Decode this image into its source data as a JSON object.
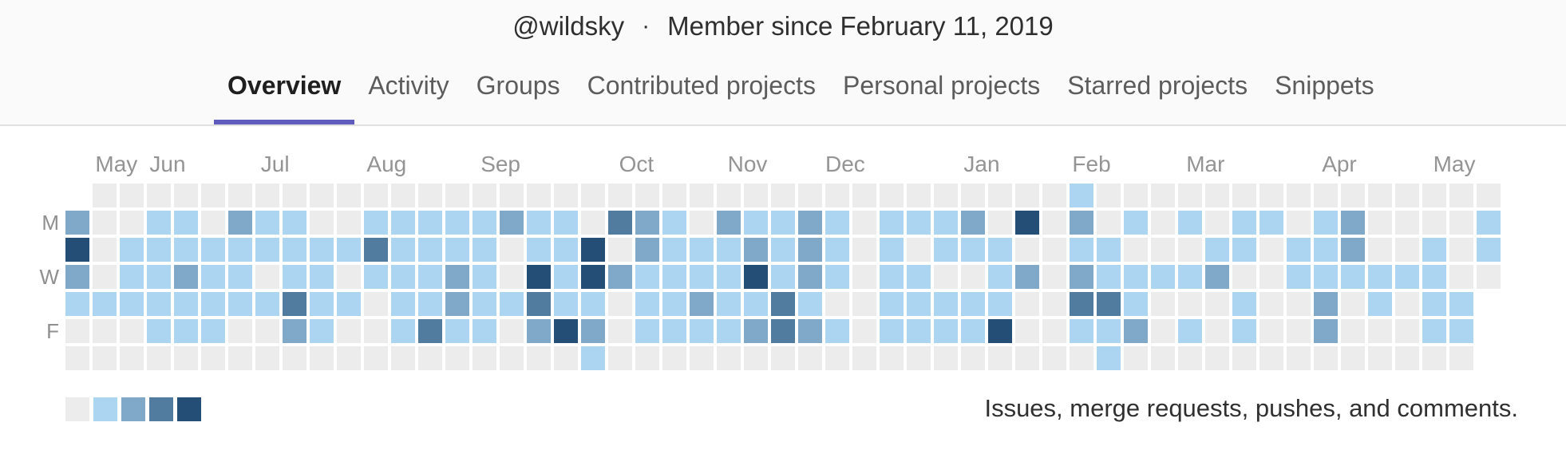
{
  "header": {
    "username": "@wildsky",
    "separator": "·",
    "member_since": "Member since February 11, 2019"
  },
  "tabs": [
    {
      "label": "Overview",
      "active": true
    },
    {
      "label": "Activity",
      "active": false
    },
    {
      "label": "Groups",
      "active": false
    },
    {
      "label": "Contributed projects",
      "active": false
    },
    {
      "label": "Personal projects",
      "active": false
    },
    {
      "label": "Starred projects",
      "active": false
    },
    {
      "label": "Snippets",
      "active": false
    }
  ],
  "theme": {
    "accent": "#5f5cbe",
    "header_bg": "#fafafa",
    "border": "#e0e0e0"
  },
  "calendar": {
    "months": [
      {
        "label": "May",
        "week": 1.1
      },
      {
        "label": "Jun",
        "week": 3.1
      },
      {
        "label": "Jul",
        "week": 7.2
      },
      {
        "label": "Aug",
        "week": 11.1
      },
      {
        "label": "Sep",
        "week": 15.3
      },
      {
        "label": "Oct",
        "week": 20.4
      },
      {
        "label": "Nov",
        "week": 24.4
      },
      {
        "label": "Dec",
        "week": 28.0
      },
      {
        "label": "Jan",
        "week": 33.1
      },
      {
        "label": "Feb",
        "week": 37.1
      },
      {
        "label": "Mar",
        "week": 41.3
      },
      {
        "label": "Apr",
        "week": 46.3
      },
      {
        "label": "May",
        "week": 50.4
      }
    ],
    "day_labels": [
      {
        "label": "M",
        "row": 1
      },
      {
        "label": "W",
        "row": 3
      },
      {
        "label": "F",
        "row": 5
      }
    ],
    "days_order": [
      "Sun",
      "Mon",
      "Tue",
      "Wed",
      "Thu",
      "Fri",
      "Sat"
    ],
    "level_colors": [
      "#ececec",
      "#acd5f2",
      "#7fa8c9",
      "#527ba0",
      "#254e77"
    ],
    "grid": [
      [
        null,
        0,
        0,
        0,
        0,
        0,
        0,
        0,
        0,
        0,
        0,
        0,
        0,
        0,
        0,
        0,
        0,
        0,
        0,
        0,
        0,
        0,
        0,
        0,
        0,
        0,
        0,
        0,
        0,
        0,
        0,
        0,
        0,
        0,
        0,
        0,
        0,
        1,
        0,
        0,
        0,
        0,
        0,
        0,
        0,
        0,
        0,
        0,
        0,
        0,
        0,
        0,
        0
      ],
      [
        2,
        0,
        0,
        1,
        1,
        0,
        2,
        1,
        1,
        0,
        0,
        1,
        1,
        1,
        1,
        1,
        2,
        1,
        1,
        0,
        3,
        2,
        1,
        0,
        2,
        1,
        1,
        2,
        1,
        0,
        1,
        1,
        1,
        2,
        0,
        4,
        0,
        2,
        0,
        1,
        0,
        1,
        0,
        1,
        1,
        0,
        1,
        2,
        0,
        0,
        0,
        0,
        1
      ],
      [
        4,
        0,
        1,
        1,
        1,
        1,
        1,
        1,
        1,
        1,
        1,
        3,
        1,
        1,
        1,
        1,
        0,
        1,
        1,
        4,
        0,
        2,
        1,
        1,
        1,
        2,
        1,
        2,
        1,
        0,
        1,
        0,
        1,
        1,
        1,
        0,
        0,
        1,
        1,
        0,
        0,
        0,
        1,
        1,
        0,
        1,
        1,
        2,
        0,
        0,
        1,
        0,
        1
      ],
      [
        2,
        0,
        1,
        1,
        2,
        1,
        1,
        0,
        1,
        1,
        0,
        1,
        1,
        1,
        2,
        1,
        0,
        4,
        1,
        4,
        2,
        1,
        1,
        1,
        1,
        4,
        1,
        2,
        1,
        0,
        1,
        1,
        0,
        0,
        1,
        2,
        0,
        2,
        1,
        1,
        1,
        1,
        2,
        0,
        0,
        1,
        1,
        1,
        1,
        1,
        1,
        0,
        0
      ],
      [
        1,
        1,
        1,
        1,
        1,
        1,
        1,
        1,
        3,
        1,
        1,
        0,
        1,
        1,
        2,
        1,
        1,
        3,
        1,
        1,
        0,
        1,
        1,
        2,
        1,
        1,
        3,
        1,
        0,
        0,
        1,
        1,
        1,
        1,
        1,
        0,
        0,
        3,
        3,
        1,
        0,
        0,
        0,
        1,
        0,
        0,
        2,
        0,
        1,
        0,
        1,
        1,
        null
      ],
      [
        0,
        0,
        0,
        1,
        1,
        1,
        0,
        0,
        2,
        1,
        0,
        0,
        1,
        3,
        1,
        1,
        0,
        2,
        4,
        2,
        0,
        1,
        1,
        1,
        1,
        2,
        3,
        2,
        1,
        0,
        1,
        1,
        1,
        1,
        4,
        0,
        0,
        1,
        1,
        2,
        0,
        1,
        0,
        1,
        0,
        0,
        2,
        0,
        0,
        0,
        1,
        1,
        null
      ],
      [
        0,
        0,
        0,
        0,
        0,
        0,
        0,
        0,
        0,
        0,
        0,
        0,
        0,
        0,
        0,
        0,
        0,
        0,
        0,
        1,
        0,
        0,
        0,
        0,
        0,
        0,
        0,
        0,
        0,
        0,
        0,
        0,
        0,
        0,
        0,
        0,
        0,
        0,
        1,
        0,
        0,
        0,
        0,
        0,
        0,
        0,
        0,
        0,
        0,
        0,
        0,
        0,
        null
      ]
    ],
    "legend_caption": "Issues, merge requests, pushes, and comments."
  }
}
